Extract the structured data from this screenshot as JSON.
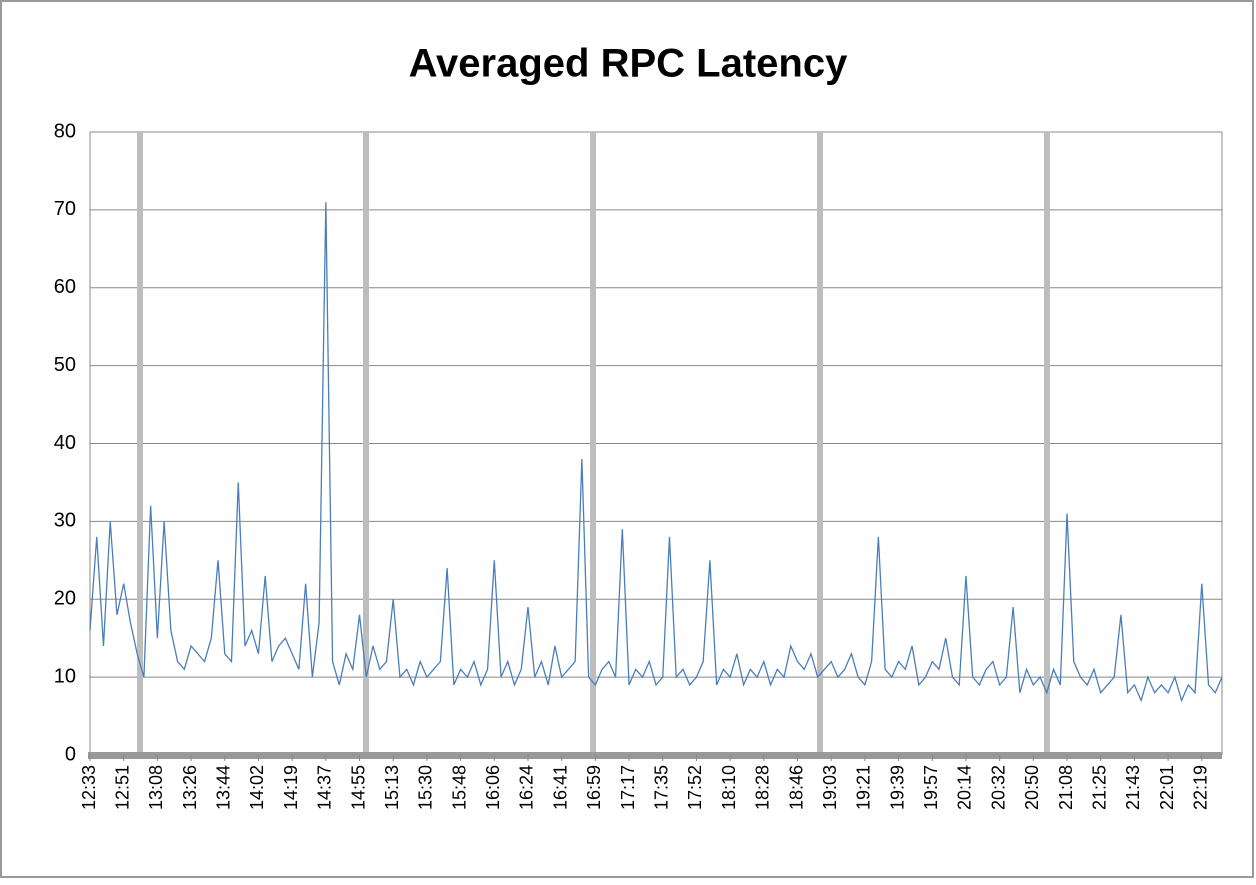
{
  "chart_data": {
    "type": "line",
    "title": "Averaged RPC Latency",
    "color": "#4a7ebb",
    "grid": true,
    "ylim": [
      0,
      80
    ],
    "yticks": [
      0,
      10,
      20,
      30,
      40,
      50,
      60,
      70,
      80
    ],
    "categories": [
      "12:33",
      null,
      null,
      null,
      null,
      "12:51",
      null,
      null,
      null,
      null,
      "13:08",
      null,
      null,
      null,
      null,
      "13:26",
      null,
      null,
      null,
      null,
      "13:44",
      null,
      null,
      null,
      null,
      "14:02",
      null,
      null,
      null,
      null,
      "14:19",
      null,
      null,
      null,
      null,
      "14:37",
      null,
      null,
      null,
      null,
      "14:55",
      null,
      null,
      null,
      null,
      "15:13",
      null,
      null,
      null,
      null,
      "15:30",
      null,
      null,
      null,
      null,
      "15:48",
      null,
      null,
      null,
      null,
      "16:06",
      null,
      null,
      null,
      null,
      "16:24",
      null,
      null,
      null,
      null,
      "16:41",
      null,
      null,
      null,
      null,
      "16:59",
      null,
      null,
      null,
      null,
      "17:17",
      null,
      null,
      null,
      null,
      "17:35",
      null,
      null,
      null,
      null,
      "17:52",
      null,
      null,
      null,
      null,
      "18:10",
      null,
      null,
      null,
      null,
      "18:28",
      null,
      null,
      null,
      null,
      "18:46",
      null,
      null,
      null,
      null,
      "19:03",
      null,
      null,
      null,
      null,
      "19:21",
      null,
      null,
      null,
      null,
      "19:39",
      null,
      null,
      null,
      null,
      "19:57",
      null,
      null,
      null,
      null,
      "20:14",
      null,
      null,
      null,
      null,
      "20:32",
      null,
      null,
      null,
      null,
      "20:50",
      null,
      null,
      null,
      null,
      "21:08",
      null,
      null,
      null,
      null,
      "21:25",
      null,
      null,
      null,
      null,
      "21:43",
      null,
      null,
      null,
      null,
      "22:01",
      null,
      null,
      null,
      null,
      "22:19",
      null,
      null,
      null
    ],
    "values": [
      16,
      28,
      14,
      30,
      18,
      22,
      17,
      13,
      10,
      32,
      15,
      30,
      16,
      12,
      11,
      14,
      13,
      12,
      15,
      25,
      13,
      12,
      35,
      14,
      16,
      13,
      23,
      12,
      14,
      15,
      13,
      11,
      22,
      10,
      17,
      71,
      12,
      9,
      13,
      11,
      18,
      10,
      14,
      11,
      12,
      20,
      10,
      11,
      9,
      12,
      10,
      11,
      12,
      24,
      9,
      11,
      10,
      12,
      9,
      11,
      25,
      10,
      12,
      9,
      11,
      19,
      10,
      12,
      9,
      14,
      10,
      11,
      12,
      38,
      10,
      9,
      11,
      12,
      10,
      29,
      9,
      11,
      10,
      12,
      9,
      10,
      28,
      10,
      11,
      9,
      10,
      12,
      25,
      9,
      11,
      10,
      13,
      9,
      11,
      10,
      12,
      9,
      11,
      10,
      14,
      12,
      11,
      13,
      10,
      11,
      12,
      10,
      11,
      13,
      10,
      9,
      12,
      28,
      11,
      10,
      12,
      11,
      14,
      9,
      10,
      12,
      11,
      15,
      10,
      9,
      23,
      10,
      9,
      11,
      12,
      9,
      10,
      19,
      8,
      11,
      9,
      10,
      8,
      11,
      9,
      31,
      12,
      10,
      9,
      11,
      8,
      9,
      10,
      18,
      8,
      9,
      7,
      10,
      8,
      9,
      8,
      10,
      7,
      9,
      8,
      22,
      9,
      8,
      10
    ]
  }
}
